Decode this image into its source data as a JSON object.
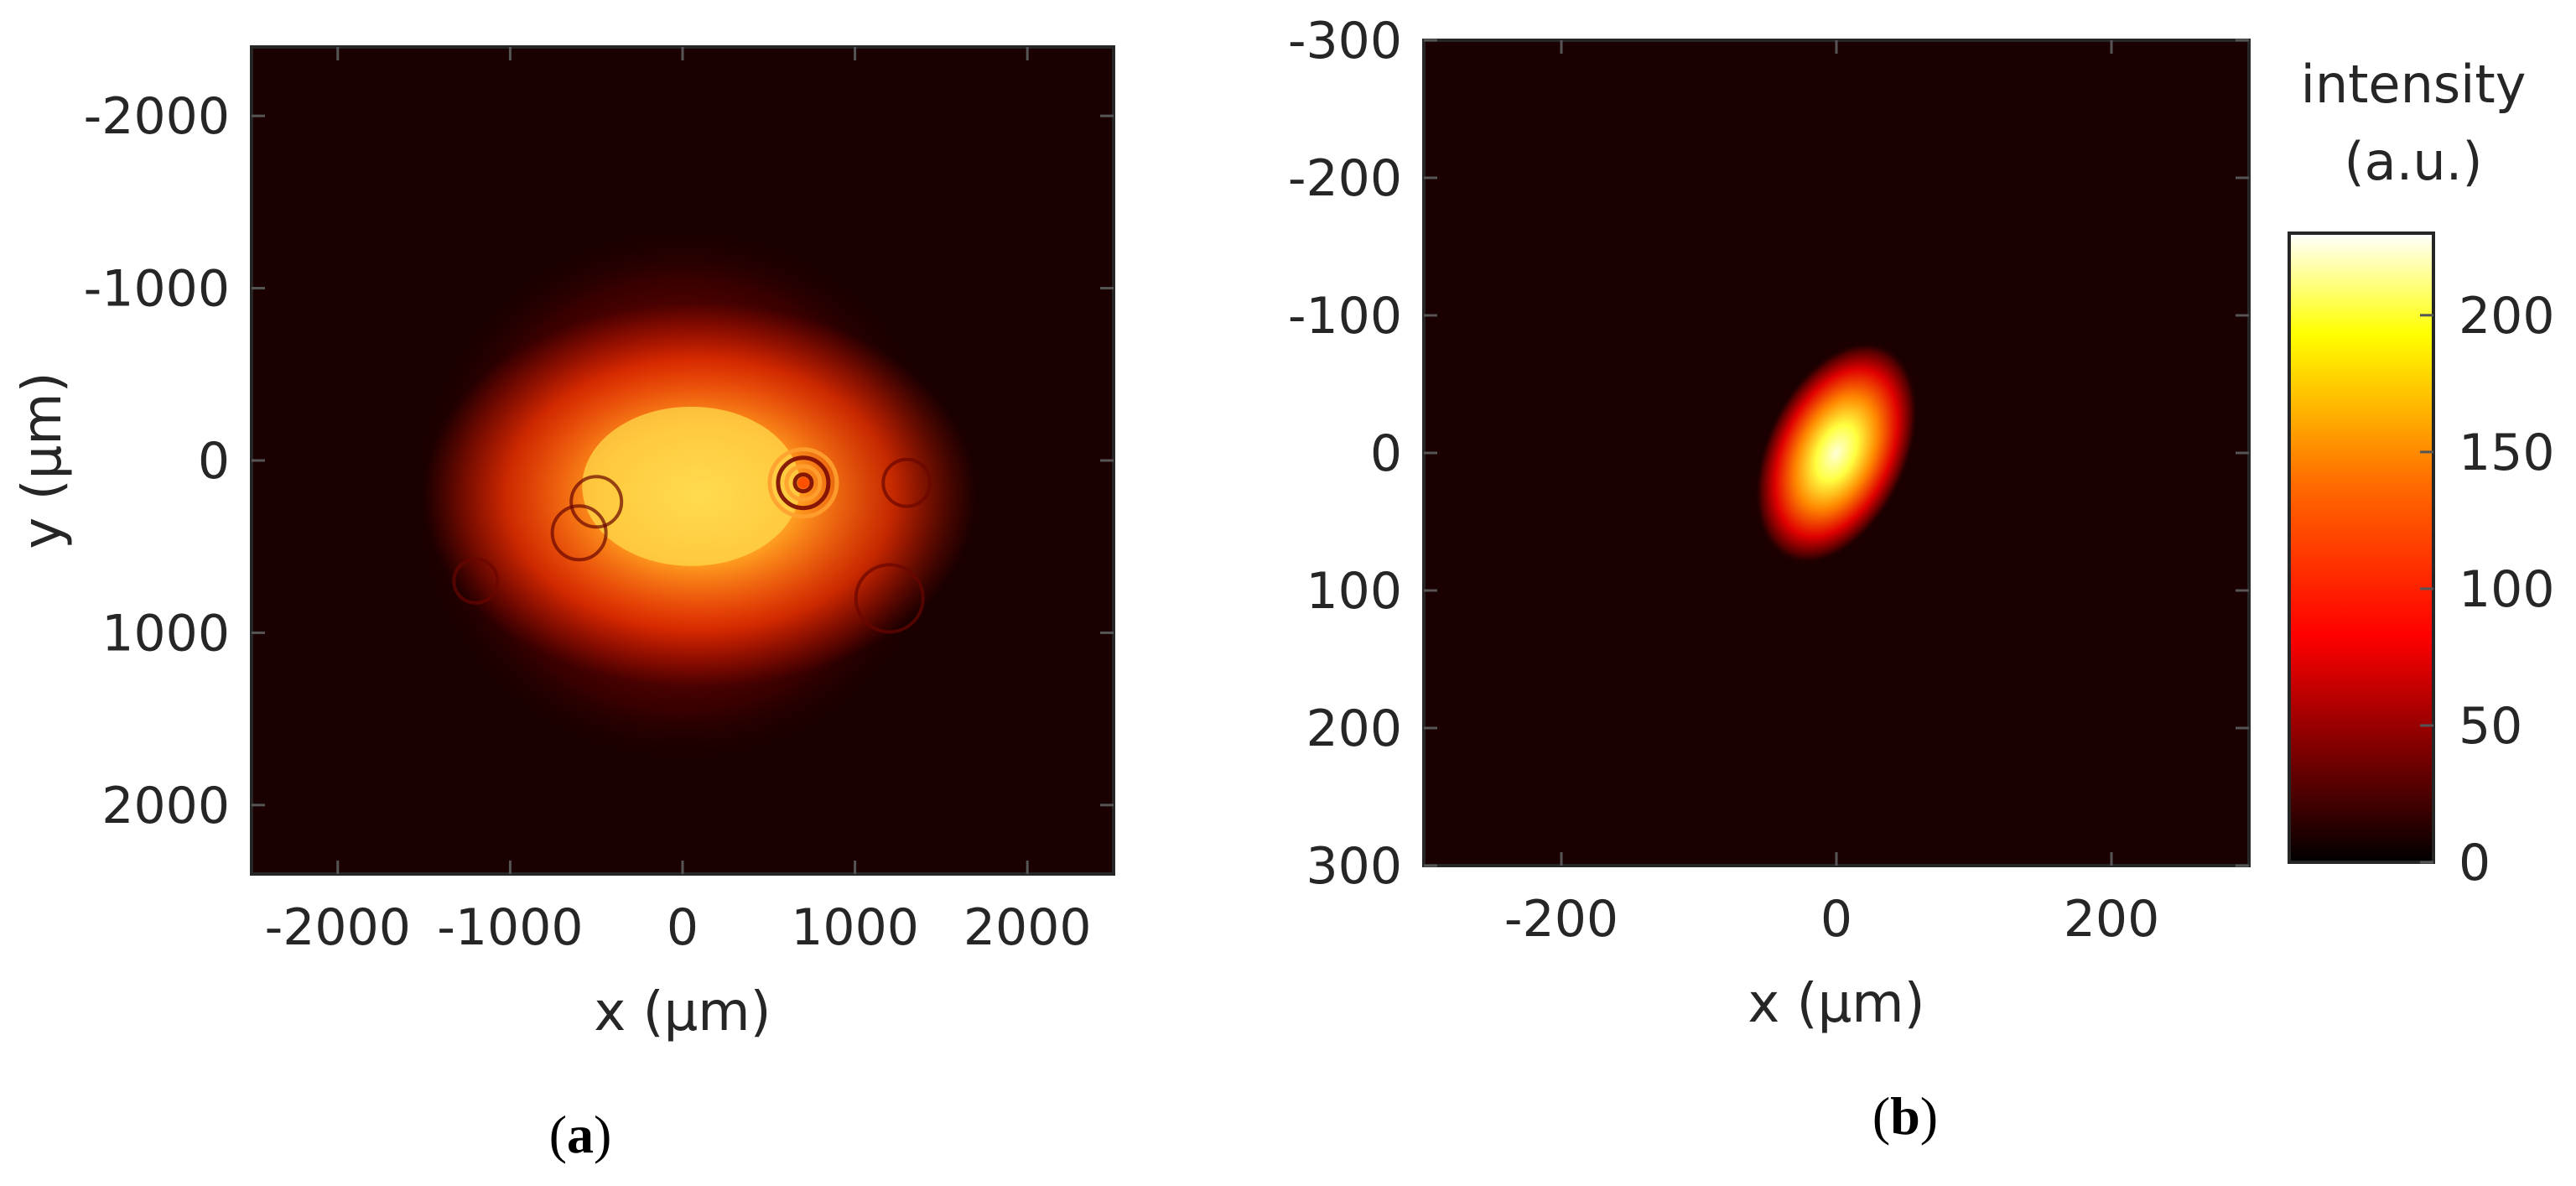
{
  "chart_data": [
    {
      "panel": "a",
      "panel_label": [
        "(",
        "a",
        ")"
      ],
      "type": "heatmap",
      "description_visible": "beam intensity image",
      "xlabel": "x (μm)",
      "ylabel": "y (μm)",
      "xlim": [
        -2500,
        2500
      ],
      "ylim": [
        -2400,
        2400
      ],
      "y_reversed": true,
      "xticks": [
        -2000,
        -1000,
        0,
        1000,
        2000
      ],
      "xtick_labels": [
        "-2000",
        "-1000",
        "0",
        "1000",
        "2000"
      ],
      "yticks": [
        -2000,
        -1000,
        0,
        1000,
        2000
      ],
      "ytick_labels": [
        "-2000",
        "-1000",
        "0",
        "1000",
        "2000"
      ],
      "features": {
        "peak_center": [
          100,
          200
        ],
        "bright_ring_center": [
          700,
          130
        ],
        "halo_radius": 1500
      }
    },
    {
      "panel": "b",
      "panel_label": [
        "(",
        "b",
        ")"
      ],
      "type": "heatmap",
      "xlabel": "x (μm)",
      "xlim": [
        -300,
        300
      ],
      "ylim": [
        -300,
        300
      ],
      "y_reversed": true,
      "xticks": [
        -200,
        0,
        200
      ],
      "xtick_labels": [
        "-200",
        "0",
        "200"
      ],
      "yticks": [
        -300,
        -200,
        -100,
        0,
        100,
        200,
        300
      ],
      "ytick_labels": [
        "-300",
        "-200",
        "-100",
        "0",
        "100",
        "200",
        "300"
      ],
      "features": {
        "spot_center": [
          0,
          0
        ],
        "spot_semi_axes": [
          45,
          75
        ],
        "spot_tilt_deg": 25
      }
    }
  ],
  "colorbar": {
    "title_line1": "intensity",
    "title_line2": "(a.u.)",
    "colormap": "hot",
    "range": [
      0,
      230
    ],
    "ticks": [
      0,
      50,
      100,
      150,
      200
    ],
    "tick_labels": [
      "0",
      "50",
      "100",
      "150",
      "200"
    ]
  },
  "colors": {
    "background": "#1a0000",
    "axis": "#262626",
    "hot_stops": [
      "#000000",
      "#8c0000",
      "#ff0000",
      "#ff8000",
      "#ffff00",
      "#ffffff"
    ]
  }
}
